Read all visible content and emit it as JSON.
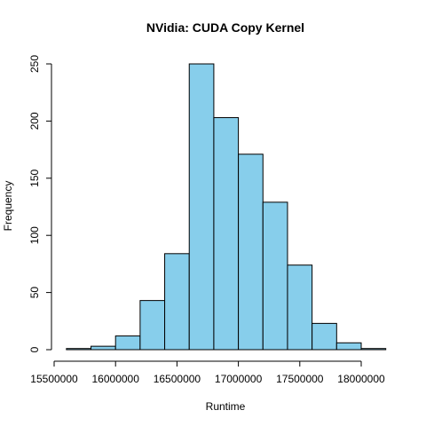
{
  "chart_data": {
    "type": "bar",
    "title": "NVidia: CUDA Copy Kernel",
    "xlabel": "Runtime",
    "ylabel": "Frequency",
    "bins": [
      {
        "from": 15600000,
        "to": 15800000,
        "count": 1
      },
      {
        "from": 15800000,
        "to": 16000000,
        "count": 3
      },
      {
        "from": 16000000,
        "to": 16200000,
        "count": 12
      },
      {
        "from": 16200000,
        "to": 16400000,
        "count": 43
      },
      {
        "from": 16400000,
        "to": 16600000,
        "count": 84
      },
      {
        "from": 16600000,
        "to": 16800000,
        "count": 250
      },
      {
        "from": 16800000,
        "to": 17000000,
        "count": 203
      },
      {
        "from": 17000000,
        "to": 17200000,
        "count": 171
      },
      {
        "from": 17200000,
        "to": 17400000,
        "count": 129
      },
      {
        "from": 17400000,
        "to": 17600000,
        "count": 74
      },
      {
        "from": 17600000,
        "to": 17800000,
        "count": 23
      },
      {
        "from": 17800000,
        "to": 18000000,
        "count": 6
      },
      {
        "from": 18000000,
        "to": 18200000,
        "count": 1
      }
    ],
    "xticks": [
      15500000,
      16000000,
      16500000,
      17000000,
      17500000,
      18000000
    ],
    "xtick_labels": [
      "15500000",
      "16000000",
      "16500000",
      "17000000",
      "17500000",
      "18000000"
    ],
    "yticks": [
      0,
      50,
      100,
      150,
      200,
      250
    ],
    "ytick_labels": [
      "0",
      "50",
      "100",
      "150",
      "200",
      "250"
    ],
    "xlim": [
      15500000,
      18200000
    ],
    "ylim": [
      0,
      250
    ],
    "grid": false,
    "legend": "none",
    "bar_color": "#87ceeb",
    "edge_color": "#000000"
  }
}
